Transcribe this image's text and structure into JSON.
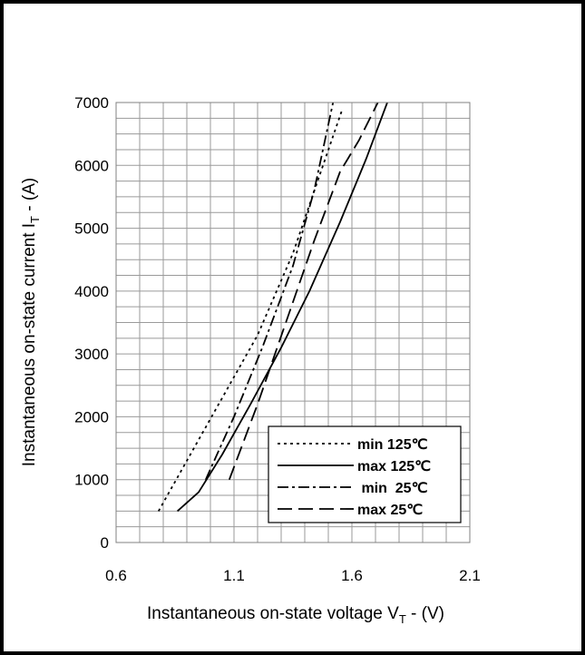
{
  "chart_data": {
    "type": "line",
    "title": "",
    "xlabel": "Instantaneous on-state voltage V",
    "xlabel_sub": "T",
    "xlabel_suffix": " -  (V)",
    "ylabel": "Instantaneous on-state current I",
    "ylabel_sub": "T",
    "ylabel_suffix": " -  (A)",
    "xlim": [
      0.6,
      2.1
    ],
    "ylim": [
      0,
      7000
    ],
    "x_ticks": [
      "0.6",
      "1.1",
      "1.6",
      "2.1"
    ],
    "y_ticks": [
      "0",
      "1000",
      "2000",
      "3000",
      "4000",
      "5000",
      "6000",
      "7000"
    ],
    "grid": true,
    "legend_position": "bottom-right",
    "series": [
      {
        "name": "min 125℃",
        "dash": "3,4",
        "x": [
          0.78,
          0.9,
          1.05,
          1.2,
          1.35,
          1.45,
          1.56
        ],
        "y": [
          500,
          1300,
          2300,
          3300,
          4600,
          5700,
          6900
        ]
      },
      {
        "name": "max 125℃",
        "dash": "none",
        "x": [
          0.86,
          0.95,
          1.05,
          1.17,
          1.3,
          1.42,
          1.55,
          1.66,
          1.75
        ],
        "y": [
          500,
          800,
          1400,
          2200,
          3100,
          4000,
          5100,
          6100,
          7000
        ]
      },
      {
        "name": " min  25℃",
        "dash": "12,4,3,4",
        "x": [
          0.98,
          1.1,
          1.22,
          1.35,
          1.44,
          1.52
        ],
        "y": [
          1000,
          2000,
          3100,
          4400,
          5600,
          7000
        ]
      },
      {
        "name": "max 25℃",
        "dash": "16,7",
        "x": [
          1.08,
          1.2,
          1.32,
          1.44,
          1.55,
          1.63,
          1.71
        ],
        "y": [
          1000,
          2200,
          3500,
          4800,
          5900,
          6400,
          7000
        ]
      }
    ]
  }
}
